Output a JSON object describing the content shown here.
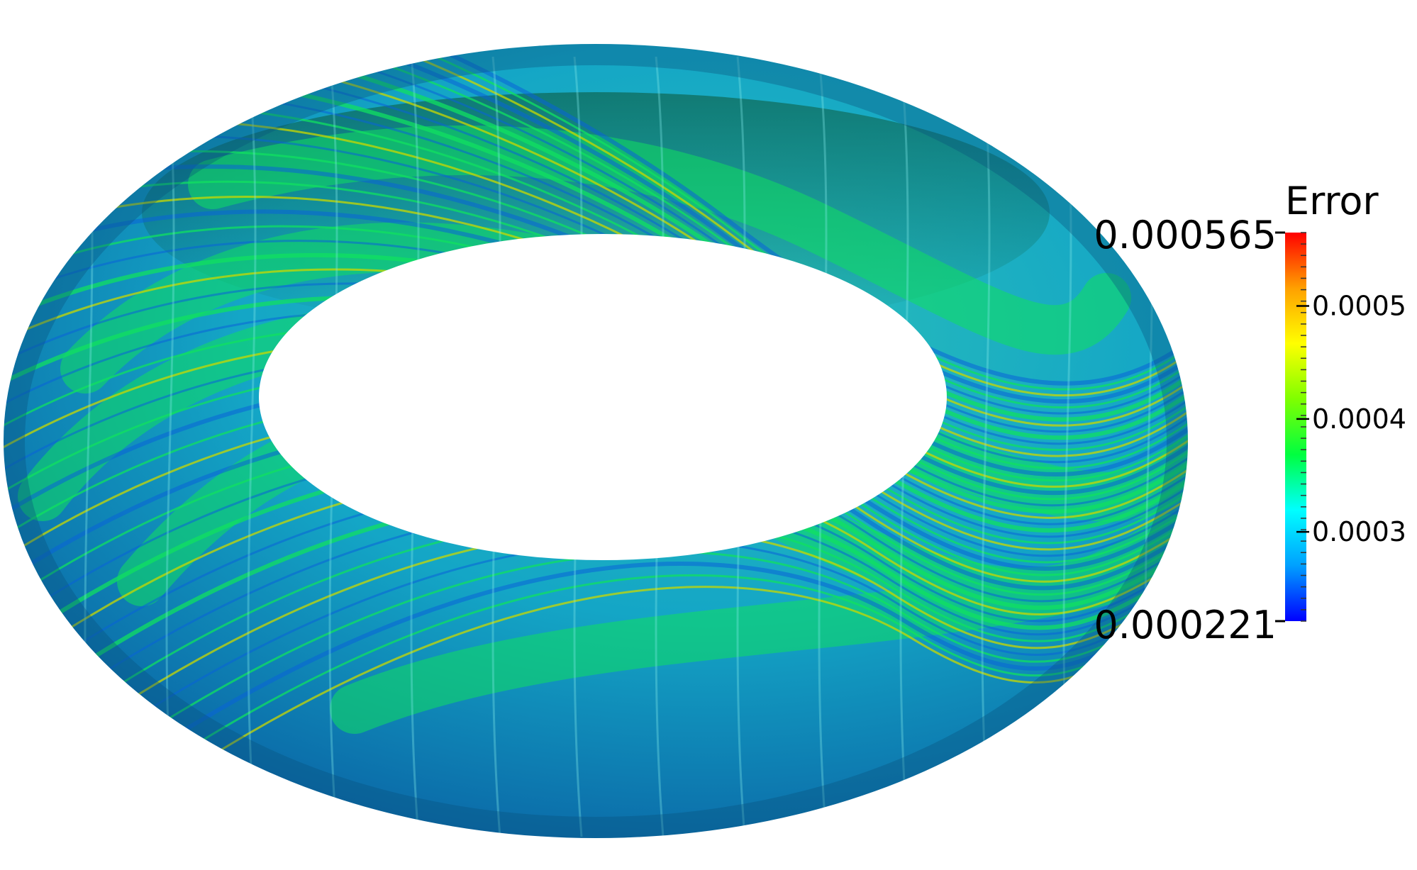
{
  "colorbar": {
    "title": "Error",
    "max_label": "0.000565",
    "min_label": "0.000221",
    "range": [
      0.000221,
      0.000565
    ],
    "ticks": [
      {
        "value": 0.0005,
        "label": "0.0005"
      },
      {
        "value": 0.0004,
        "label": "0.0004"
      },
      {
        "value": 0.0003,
        "label": "0.0003"
      }
    ],
    "colormap": [
      "#0000ff",
      "#00a0ff",
      "#00ffff",
      "#00ff40",
      "#7fff00",
      "#ffff00",
      "#ffa000",
      "#ff0000"
    ]
  },
  "surface": {
    "shape": "torus",
    "colors": {
      "base": "#1aa6c8",
      "stripe_blue": "#0a62d8",
      "stripe_green": "#10e060",
      "stripe_yellow": "#c8d800",
      "shadow": "#0b5a3a"
    }
  }
}
